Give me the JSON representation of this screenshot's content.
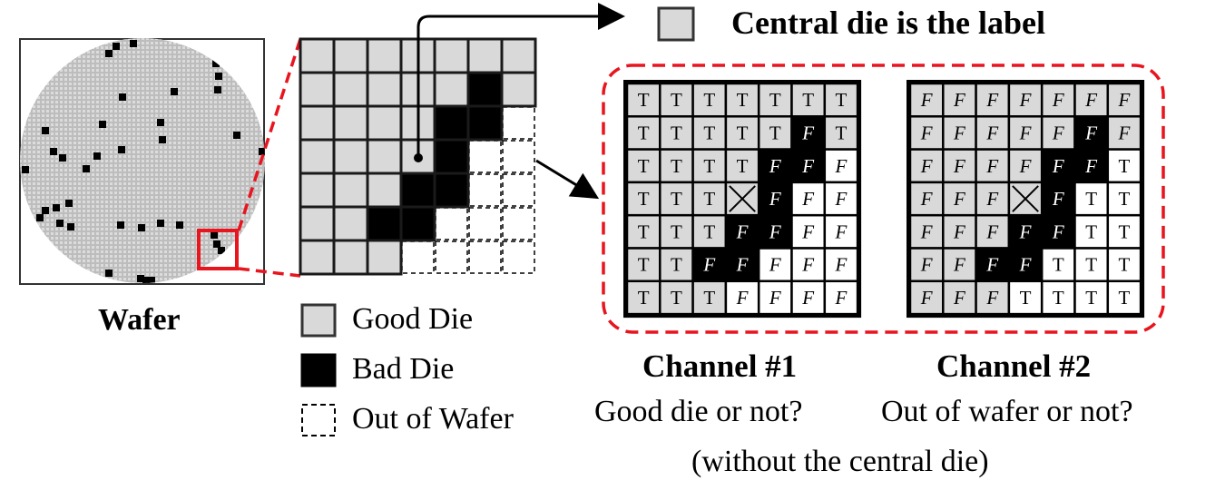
{
  "wafer": {
    "label": "Wafer",
    "bad_die_count_shown": 40
  },
  "label_note": "Central die is the label",
  "legend": {
    "good": "Good Die",
    "bad": "Bad Die",
    "out": "Out of Wafer"
  },
  "zoom_grid": [
    [
      "G",
      "G",
      "G",
      "G",
      "G",
      "G",
      "G"
    ],
    [
      "G",
      "G",
      "G",
      "G",
      "G",
      "B",
      "G"
    ],
    [
      "G",
      "G",
      "G",
      "G",
      "B",
      "B",
      "O"
    ],
    [
      "G",
      "G",
      "G",
      "G",
      "B",
      "O",
      "O"
    ],
    [
      "G",
      "G",
      "G",
      "B",
      "B",
      "O",
      "O"
    ],
    [
      "G",
      "G",
      "B",
      "B",
      "O",
      "O",
      "O"
    ],
    [
      "G",
      "G",
      "G",
      "O",
      "O",
      "O",
      "O"
    ]
  ],
  "channel1": {
    "title": "Channel #1",
    "description": "Good die or not?",
    "cells": [
      [
        "T",
        "T",
        "T",
        "T",
        "T",
        "T",
        "T"
      ],
      [
        "T",
        "T",
        "T",
        "T",
        "T",
        "F",
        "T"
      ],
      [
        "T",
        "T",
        "T",
        "T",
        "F",
        "F",
        "F"
      ],
      [
        "T",
        "T",
        "T",
        "X",
        "F",
        "F",
        "F"
      ],
      [
        "T",
        "T",
        "T",
        "F",
        "F",
        "F",
        "F"
      ],
      [
        "T",
        "T",
        "F",
        "F",
        "F",
        "F",
        "F"
      ],
      [
        "T",
        "T",
        "T",
        "F",
        "F",
        "F",
        "F"
      ]
    ]
  },
  "channel2": {
    "title": "Channel #2",
    "description": "Out of wafer or not?",
    "cells": [
      [
        "F",
        "F",
        "F",
        "F",
        "F",
        "F",
        "F"
      ],
      [
        "F",
        "F",
        "F",
        "F",
        "F",
        "F",
        "F"
      ],
      [
        "F",
        "F",
        "F",
        "F",
        "F",
        "F",
        "T"
      ],
      [
        "F",
        "F",
        "F",
        "X",
        "F",
        "T",
        "T"
      ],
      [
        "F",
        "F",
        "F",
        "F",
        "F",
        "T",
        "T"
      ],
      [
        "F",
        "F",
        "F",
        "F",
        "T",
        "T",
        "T"
      ],
      [
        "F",
        "F",
        "F",
        "T",
        "T",
        "T",
        "T"
      ]
    ]
  },
  "channel_note": "(without the central die)",
  "colors": {
    "good": "#d9d9d9",
    "bad": "#000000",
    "out": "#ffffff",
    "highlight": "#e8141e",
    "wafer_fill": "#c8c8c8"
  }
}
